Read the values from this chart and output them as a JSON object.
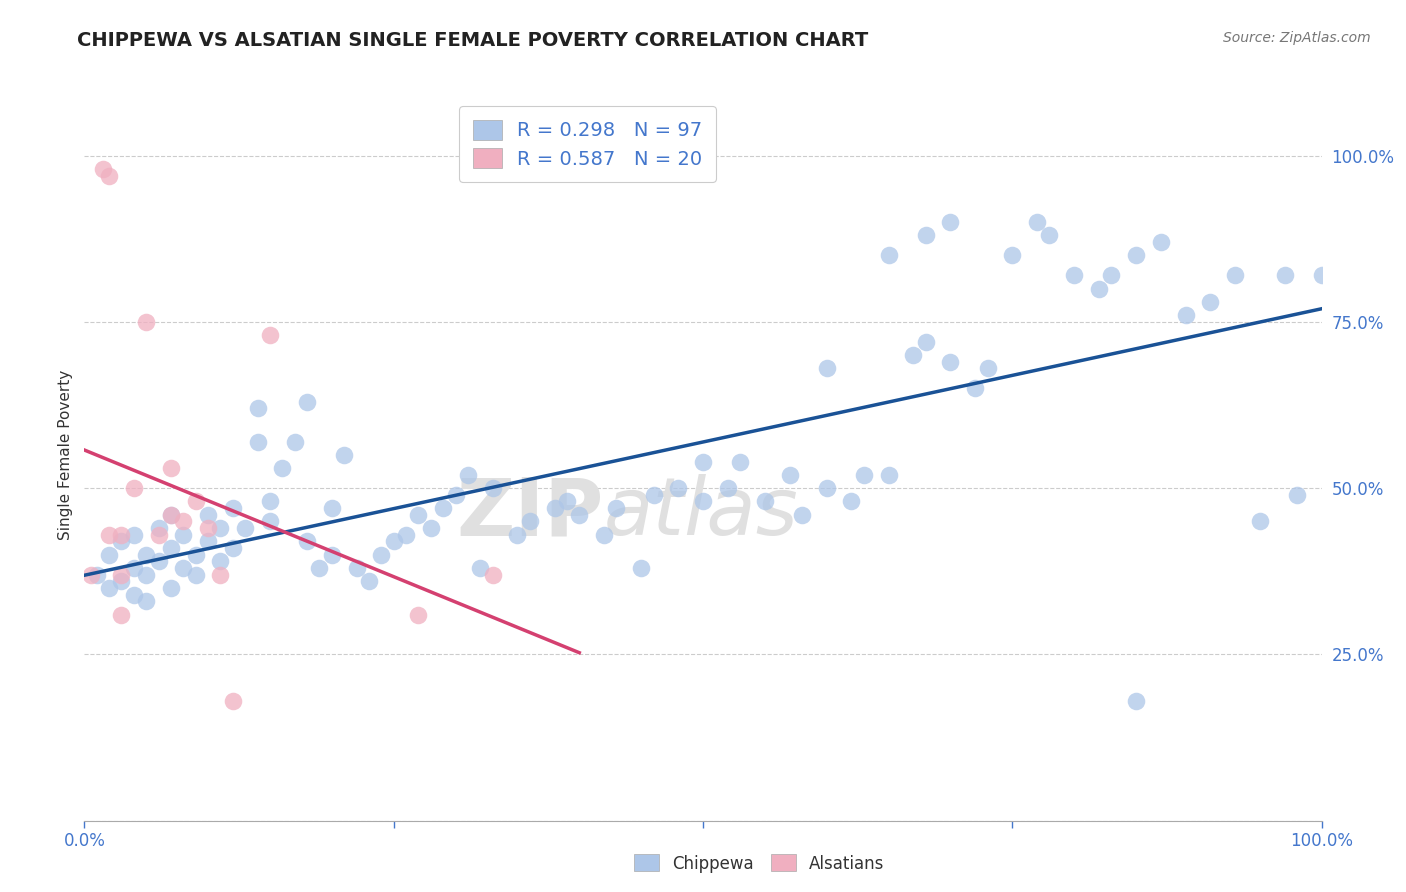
{
  "title": "CHIPPEWA VS ALSATIAN SINGLE FEMALE POVERTY CORRELATION CHART",
  "source": "Source: ZipAtlas.com",
  "ylabel": "Single Female Poverty",
  "watermark_part1": "ZIP",
  "watermark_part2": "atlas",
  "chippewa_R": 0.298,
  "chippewa_N": 97,
  "alsatian_R": 0.587,
  "alsatian_N": 20,
  "chippewa_color": "#adc6e8",
  "chippewa_line_color": "#1a5296",
  "alsatian_color": "#f0afc0",
  "alsatian_line_color": "#d44070",
  "chippewa_x": [
    0.01,
    0.02,
    0.02,
    0.03,
    0.03,
    0.04,
    0.04,
    0.04,
    0.05,
    0.05,
    0.05,
    0.06,
    0.06,
    0.07,
    0.07,
    0.07,
    0.08,
    0.08,
    0.09,
    0.09,
    0.1,
    0.1,
    0.11,
    0.11,
    0.12,
    0.12,
    0.13,
    0.14,
    0.14,
    0.15,
    0.15,
    0.16,
    0.17,
    0.18,
    0.18,
    0.19,
    0.2,
    0.2,
    0.21,
    0.22,
    0.23,
    0.24,
    0.25,
    0.26,
    0.27,
    0.28,
    0.29,
    0.3,
    0.31,
    0.32,
    0.33,
    0.35,
    0.36,
    0.38,
    0.39,
    0.4,
    0.42,
    0.43,
    0.45,
    0.46,
    0.48,
    0.5,
    0.5,
    0.52,
    0.53,
    0.55,
    0.57,
    0.58,
    0.6,
    0.62,
    0.63,
    0.65,
    0.67,
    0.68,
    0.7,
    0.72,
    0.73,
    0.75,
    0.77,
    0.78,
    0.8,
    0.82,
    0.83,
    0.85,
    0.87,
    0.89,
    0.91,
    0.93,
    0.95,
    0.97,
    0.98,
    1.0,
    0.6,
    0.65,
    0.68,
    0.7,
    0.85
  ],
  "chippewa_y": [
    0.37,
    0.4,
    0.35,
    0.36,
    0.42,
    0.38,
    0.43,
    0.34,
    0.37,
    0.4,
    0.33,
    0.39,
    0.44,
    0.35,
    0.41,
    0.46,
    0.38,
    0.43,
    0.4,
    0.37,
    0.42,
    0.46,
    0.39,
    0.44,
    0.41,
    0.47,
    0.44,
    0.62,
    0.57,
    0.45,
    0.48,
    0.53,
    0.57,
    0.42,
    0.63,
    0.38,
    0.4,
    0.47,
    0.55,
    0.38,
    0.36,
    0.4,
    0.42,
    0.43,
    0.46,
    0.44,
    0.47,
    0.49,
    0.52,
    0.38,
    0.5,
    0.43,
    0.45,
    0.47,
    0.48,
    0.46,
    0.43,
    0.47,
    0.38,
    0.49,
    0.5,
    0.48,
    0.54,
    0.5,
    0.54,
    0.48,
    0.52,
    0.46,
    0.5,
    0.48,
    0.52,
    0.52,
    0.7,
    0.72,
    0.69,
    0.65,
    0.68,
    0.85,
    0.9,
    0.88,
    0.82,
    0.8,
    0.82,
    0.85,
    0.87,
    0.76,
    0.78,
    0.82,
    0.45,
    0.82,
    0.49,
    0.82,
    0.68,
    0.85,
    0.88,
    0.9,
    0.18
  ],
  "alsatian_x": [
    0.005,
    0.015,
    0.02,
    0.02,
    0.03,
    0.03,
    0.03,
    0.04,
    0.05,
    0.06,
    0.07,
    0.07,
    0.08,
    0.09,
    0.1,
    0.11,
    0.12,
    0.15,
    0.27,
    0.33
  ],
  "alsatian_y": [
    0.37,
    0.98,
    0.97,
    0.43,
    0.43,
    0.37,
    0.31,
    0.5,
    0.75,
    0.43,
    0.53,
    0.46,
    0.45,
    0.48,
    0.44,
    0.37,
    0.18,
    0.73,
    0.31,
    0.37
  ],
  "xlim": [
    0.0,
    1.0
  ],
  "ylim": [
    0.0,
    1.1
  ],
  "yticks": [
    0.0,
    0.25,
    0.5,
    0.75,
    1.0
  ],
  "ytick_labels": [
    "",
    "25.0%",
    "50.0%",
    "75.0%",
    "100.0%"
  ],
  "xticks": [
    0.0,
    0.25,
    0.5,
    0.75,
    1.0
  ],
  "xtick_labels": [
    "0.0%",
    "",
    "",
    "",
    "100.0%"
  ],
  "grid_color": "#cccccc",
  "bg_color": "#ffffff",
  "title_fontsize": 14,
  "label_fontsize": 11,
  "tick_fontsize": 12,
  "source_fontsize": 10,
  "legend_fontsize": 14
}
